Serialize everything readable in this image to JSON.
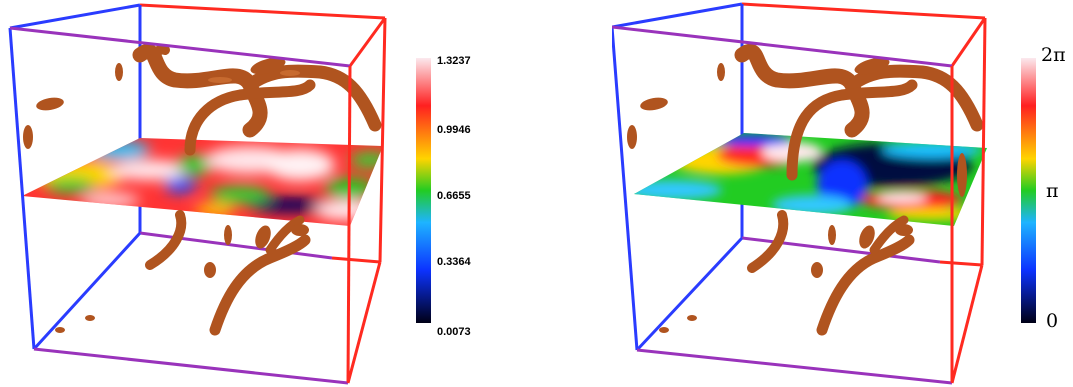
{
  "figures": [
    {
      "id": "amplitude",
      "colorbar": {
        "tick_labels": [
          "1.3237",
          "0.9946",
          "0.6655",
          "0.3364",
          "0.0073"
        ],
        "colors": [
          "#fbe9ee",
          "#ff2020",
          "#ffd400",
          "#22cc22",
          "#1eb4ff",
          "#0c33ff",
          "#000016"
        ]
      }
    },
    {
      "id": "phase",
      "colorbar": {
        "tick_labels": [
          "2π",
          "π",
          "0"
        ],
        "colors": [
          "#fbe9ee",
          "#ff2020",
          "#ffd400",
          "#22cc22",
          "#1eb4ff",
          "#0c33ff",
          "#000016"
        ]
      }
    }
  ],
  "colors": {
    "tube": "#b0541f",
    "tube_highlight": "#d77a3a",
    "cube_blue": "#2a3cff",
    "cube_purple": "#9933bb",
    "cube_red": "#ff2a20"
  }
}
